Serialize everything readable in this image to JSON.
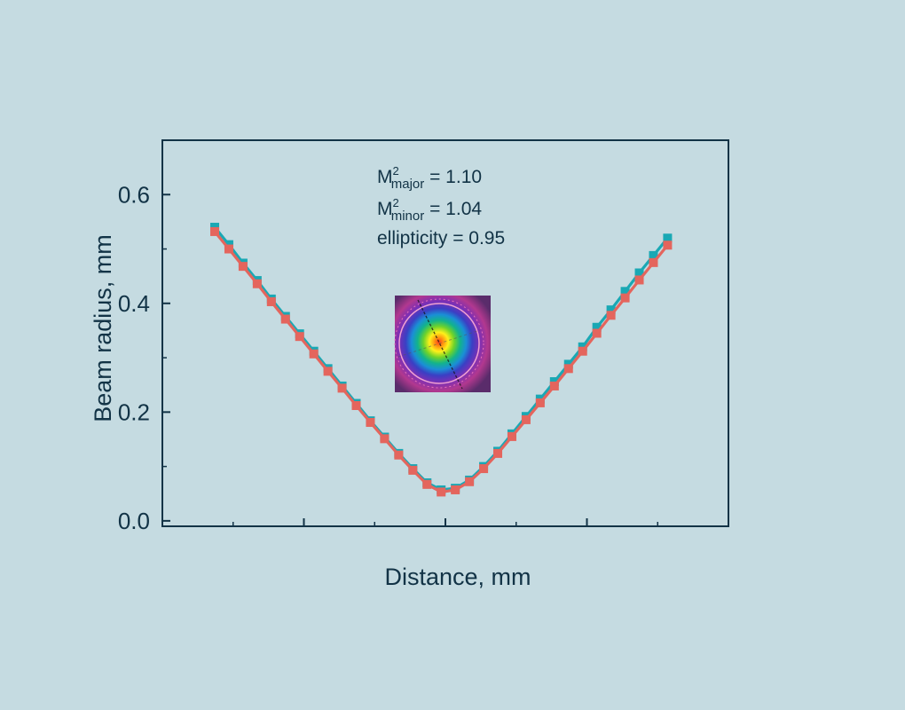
{
  "chart_data": {
    "type": "line",
    "title": "",
    "xlabel": "Distance, mm",
    "ylabel": "Beam radius, mm",
    "xlim": [
      0,
      40
    ],
    "ylim": [
      -0.01,
      0.7
    ],
    "yticks": [
      0.0,
      0.2,
      0.4,
      0.6
    ],
    "ytick_labels": [
      "0.0",
      "0.2",
      "0.4",
      "0.6"
    ],
    "xtick_labels": [],
    "grid": false,
    "legend": "none",
    "colors": {
      "major": "#1aa8b4",
      "minor": "#e4655d",
      "axis": "#123346"
    },
    "series": [
      {
        "x": [
          3.7,
          4.7,
          5.7,
          6.7,
          7.7,
          8.7,
          9.7,
          10.7,
          11.7,
          12.7,
          13.7,
          14.7,
          15.7,
          16.7,
          17.7,
          18.7,
          19.7,
          20.7,
          21.7,
          22.7,
          23.7,
          24.7,
          25.7,
          26.7,
          27.7,
          28.7,
          29.7,
          30.7,
          31.7,
          32.7,
          33.7,
          34.7,
          35.7
        ],
        "y": [
          0.54,
          0.508,
          0.474,
          0.442,
          0.408,
          0.376,
          0.344,
          0.312,
          0.28,
          0.248,
          0.216,
          0.184,
          0.154,
          0.124,
          0.096,
          0.07,
          0.057,
          0.06,
          0.075,
          0.1,
          0.128,
          0.16,
          0.192,
          0.224,
          0.256,
          0.288,
          0.32,
          0.356,
          0.388,
          0.422,
          0.456,
          0.488,
          0.52
        ]
      },
      {
        "x": [
          3.7,
          4.7,
          5.7,
          6.7,
          7.7,
          8.7,
          9.7,
          10.7,
          11.7,
          12.7,
          13.7,
          14.7,
          15.7,
          16.7,
          17.7,
          18.7,
          19.7,
          20.7,
          21.7,
          22.7,
          23.7,
          24.7,
          25.7,
          26.7,
          27.7,
          28.7,
          29.7,
          30.7,
          31.7,
          32.7,
          33.7,
          34.7,
          35.7
        ],
        "y": [
          0.532,
          0.5,
          0.468,
          0.436,
          0.403,
          0.371,
          0.339,
          0.307,
          0.275,
          0.244,
          0.212,
          0.181,
          0.151,
          0.121,
          0.093,
          0.067,
          0.053,
          0.057,
          0.072,
          0.096,
          0.124,
          0.155,
          0.186,
          0.217,
          0.248,
          0.28,
          0.312,
          0.345,
          0.378,
          0.41,
          0.443,
          0.475,
          0.507
        ]
      }
    ],
    "annotations": {
      "m2_major_base": "M",
      "m2_major_exp": "2",
      "m2_major_sub": "major",
      "m2_major_value": " = 1.10",
      "m2_minor_base": "M",
      "m2_minor_exp": "2",
      "m2_minor_sub": "minor",
      "m2_minor_value": " = 1.04",
      "ellipticity": "ellipticity = 0.95"
    },
    "inset": {
      "type": "beam-profile-heatmap"
    }
  }
}
